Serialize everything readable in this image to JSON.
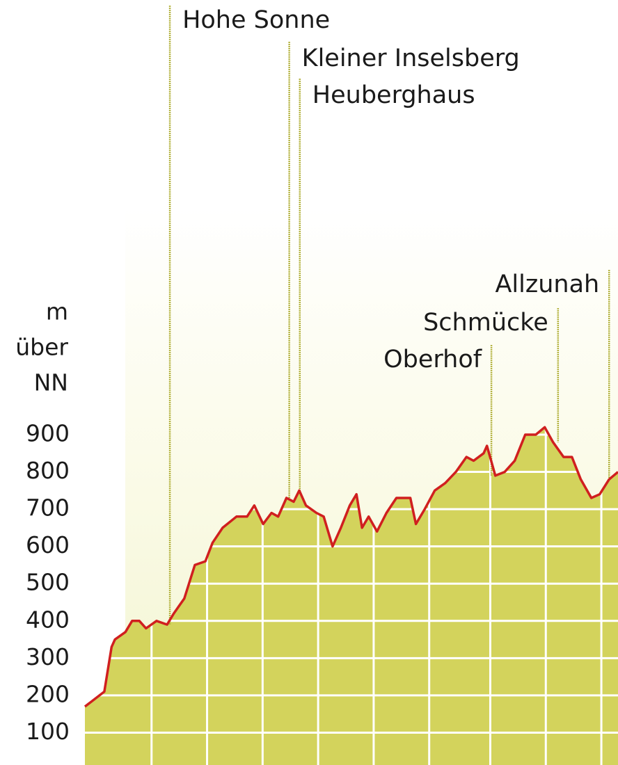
{
  "chart_data": {
    "type": "area",
    "ylabel": [
      "m",
      "über",
      "NN"
    ],
    "x": [
      0,
      3.5,
      4.8,
      5.4,
      7.3,
      8.5,
      9.8,
      11,
      12.9,
      14.8,
      16,
      17.9,
      19.8,
      21.7,
      23,
      24.8,
      27.3,
      29.2,
      30.5,
      32.1,
      33.6,
      34.8,
      36.3,
      37.6,
      38.6,
      39.8,
      41.7,
      43,
      44.6,
      46.1,
      47.7,
      48.9,
      49.9,
      51.1,
      52.6,
      54.3,
      56.1,
      58.6,
      59.6,
      61.2,
      63,
      64.9,
      66.8,
      68.7,
      70,
      71.8,
      72.4,
      73.9,
      75.6,
      77.4,
      79.3,
      81.2,
      82.8,
      84.3,
      86.2,
      87.7,
      89.3,
      91.2,
      92.7,
      94.4,
      96
    ],
    "values": [
      170,
      210,
      330,
      350,
      370,
      400,
      400,
      380,
      400,
      390,
      420,
      460,
      550,
      560,
      610,
      650,
      680,
      680,
      710,
      660,
      690,
      680,
      730,
      720,
      750,
      710,
      690,
      680,
      600,
      650,
      710,
      740,
      650,
      680,
      640,
      690,
      730,
      730,
      660,
      700,
      750,
      770,
      800,
      840,
      830,
      850,
      870,
      790,
      800,
      830,
      900,
      900,
      920,
      880,
      840,
      840,
      780,
      730,
      740,
      780,
      800
    ],
    "xlim": [
      0,
      96
    ],
    "xticks": [
      12,
      22,
      32,
      42,
      52,
      62,
      73,
      83,
      93
    ],
    "ylim": [
      0,
      900
    ],
    "yticks": [
      100,
      200,
      300,
      400,
      500,
      600,
      700,
      800,
      900
    ],
    "grid": true,
    "color": "#d01f1f",
    "fill_color": "#d3d35c",
    "annotations": [
      {
        "text": "Hohe Sonne",
        "x": 15.3
      },
      {
        "text": "Kleiner Inselsberg",
        "x": 36.8
      },
      {
        "text": "Heuberghaus",
        "x": 38.7
      },
      {
        "text": "Oberhof",
        "x": 73.2
      },
      {
        "text": "Schmücke",
        "x": 85.2
      },
      {
        "text": "Allzunah",
        "x": 94.4
      }
    ]
  }
}
